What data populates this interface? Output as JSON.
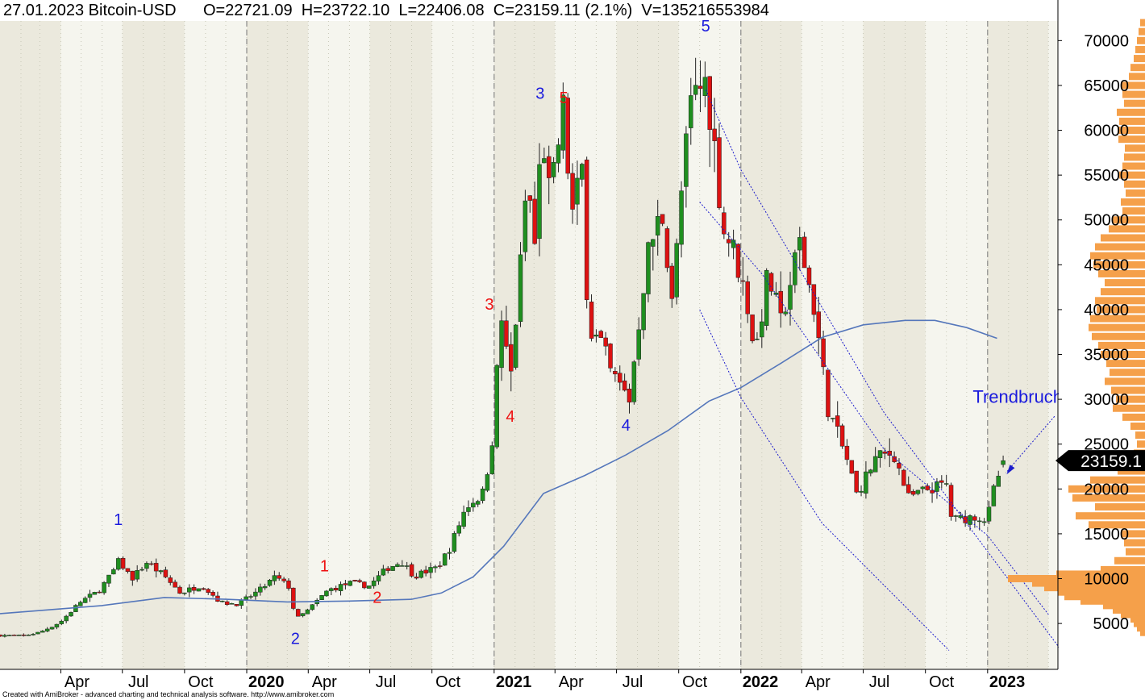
{
  "header": {
    "date": "27.01.2023",
    "symbol": "Bitcoin-USD",
    "open": "O=22721.09",
    "high": "H=23722.10",
    "low": "L=22406.08",
    "close": "C=23159.11 (2.1%)",
    "volume": "V=135216553984"
  },
  "footer": "Created with AmiBroker - advanced charting and technical analysis software. http://www.amibroker.com",
  "annotation": "Trendbruch",
  "price_tag": "23159.1",
  "colors": {
    "bull": "#1f8f1f",
    "bear": "#dd1111",
    "ma": "#5577bb",
    "channel": "#1c1ccc",
    "volume_profile": "#f5a04a",
    "blue_label": "#1a1add",
    "red_label": "#ee1111"
  },
  "chart_data": {
    "type": "candlestick",
    "title": "Bitcoin-USD",
    "ylim": [
      2000,
      73000
    ],
    "y_ticks": [
      5000,
      10000,
      15000,
      20000,
      25000,
      30000,
      35000,
      40000,
      45000,
      50000,
      55000,
      60000,
      65000,
      70000
    ],
    "x_ticks": [
      "Apr",
      "Jul",
      "Oct",
      "2020",
      "Apr",
      "Jul",
      "Oct",
      "2021",
      "Apr",
      "Jul",
      "Oct",
      "2022",
      "Apr",
      "Jul",
      "Oct",
      "2023"
    ],
    "x_range": [
      "2019-01-01",
      "2023-04-15"
    ],
    "bar_interval": "weekly",
    "last_bar": {
      "date": "2023-01-27",
      "open": 22721.09,
      "high": 23722.1,
      "low": 22406.08,
      "close": 23159.11,
      "change_pct": 2.1,
      "volume": 135216553984
    },
    "close_path": [
      [
        "2019-01-01",
        3700
      ],
      [
        "2019-02-01",
        3600
      ],
      [
        "2019-03-01",
        4000
      ],
      [
        "2019-04-01",
        5200
      ],
      [
        "2019-05-01",
        7500
      ],
      [
        "2019-05-25",
        8500
      ],
      [
        "2019-06-15",
        10500
      ],
      [
        "2019-06-26",
        12000
      ],
      [
        "2019-07-15",
        10000
      ],
      [
        "2019-08-06",
        11800
      ],
      [
        "2019-09-01",
        10300
      ],
      [
        "2019-09-25",
        8400
      ],
      [
        "2019-10-26",
        9300
      ],
      [
        "2019-11-25",
        7300
      ],
      [
        "2019-12-20",
        7200
      ],
      [
        "2020-01-20",
        8700
      ],
      [
        "2020-02-12",
        10200
      ],
      [
        "2020-03-05",
        9000
      ],
      [
        "2020-03-13",
        5400
      ],
      [
        "2020-04-01",
        6500
      ],
      [
        "2020-04-30",
        8700
      ],
      [
        "2020-06-01",
        9500
      ],
      [
        "2020-07-01",
        9200
      ],
      [
        "2020-07-27",
        11200
      ],
      [
        "2020-08-17",
        11900
      ],
      [
        "2020-09-05",
        10300
      ],
      [
        "2020-10-10",
        11300
      ],
      [
        "2020-10-28",
        13500
      ],
      [
        "2020-11-20",
        18000
      ],
      [
        "2020-12-15",
        19500
      ],
      [
        "2020-12-28",
        24500
      ],
      [
        "2021-01-05",
        33000
      ],
      [
        "2021-01-10",
        40000
      ],
      [
        "2021-01-25",
        32000
      ],
      [
        "2021-02-08",
        44000
      ],
      [
        "2021-02-20",
        56000
      ],
      [
        "2021-02-28",
        45000
      ],
      [
        "2021-03-13",
        60000
      ],
      [
        "2021-03-25",
        52000
      ],
      [
        "2021-04-14",
        63000
      ],
      [
        "2021-04-25",
        50000
      ],
      [
        "2021-05-12",
        56000
      ],
      [
        "2021-05-20",
        38000
      ],
      [
        "2021-06-10",
        36000
      ],
      [
        "2021-06-22",
        33000
      ],
      [
        "2021-07-20",
        30000
      ],
      [
        "2021-08-15",
        46000
      ],
      [
        "2021-09-06",
        51000
      ],
      [
        "2021-09-22",
        41000
      ],
      [
        "2021-10-06",
        54000
      ],
      [
        "2021-10-20",
        63500
      ],
      [
        "2021-11-10",
        65500
      ],
      [
        "2021-11-25",
        57000
      ],
      [
        "2021-12-05",
        49000
      ],
      [
        "2021-12-20",
        47000
      ],
      [
        "2022-01-10",
        41000
      ],
      [
        "2022-01-22",
        35000
      ],
      [
        "2022-02-10",
        44000
      ],
      [
        "2022-03-01",
        38500
      ],
      [
        "2022-03-29",
        47500
      ],
      [
        "2022-04-20",
        40000
      ],
      [
        "2022-05-10",
        29000
      ],
      [
        "2022-06-13",
        22000
      ],
      [
        "2022-06-18",
        19000
      ],
      [
        "2022-07-20",
        23500
      ],
      [
        "2022-08-15",
        24000
      ],
      [
        "2022-09-06",
        19000
      ],
      [
        "2022-10-05",
        20000
      ],
      [
        "2022-11-02",
        20500
      ],
      [
        "2022-11-09",
        16500
      ],
      [
        "2022-12-15",
        17000
      ],
      [
        "2022-12-31",
        16500
      ],
      [
        "2023-01-13",
        20800
      ],
      [
        "2023-01-27",
        23159
      ]
    ],
    "moving_average": [
      [
        "2019-01-01",
        6100
      ],
      [
        "2019-06-01",
        7000
      ],
      [
        "2019-09-01",
        7900
      ],
      [
        "2019-12-01",
        7700
      ],
      [
        "2020-03-01",
        7400
      ],
      [
        "2020-06-01",
        7500
      ],
      [
        "2020-09-01",
        7700
      ],
      [
        "2020-10-15",
        8400
      ],
      [
        "2020-12-01",
        10200
      ],
      [
        "2021-01-15",
        13600
      ],
      [
        "2021-03-15",
        19500
      ],
      [
        "2021-05-15",
        21500
      ],
      [
        "2021-07-15",
        23800
      ],
      [
        "2021-09-15",
        26500
      ],
      [
        "2021-11-15",
        29800
      ],
      [
        "2022-01-01",
        31300
      ],
      [
        "2022-03-01",
        34000
      ],
      [
        "2022-05-01",
        36900
      ],
      [
        "2022-07-01",
        38300
      ],
      [
        "2022-09-01",
        38800
      ],
      [
        "2022-10-15",
        38800
      ],
      [
        "2022-12-01",
        38000
      ],
      [
        "2023-01-15",
        36800
      ]
    ],
    "channel_lines": [
      [
        [
          "2021-11-10",
          64500
        ],
        [
          "2022-01-01",
          55600
        ],
        [
          "2022-08-01",
          28500
        ],
        [
          "2023-04-20",
          2000
        ]
      ],
      [
        [
          "2021-11-01",
          52000
        ],
        [
          "2022-02-01",
          44000
        ],
        [
          "2022-08-01",
          24400
        ],
        [
          "2023-01-01",
          14800
        ],
        [
          "2023-04-01",
          6000
        ]
      ],
      [
        [
          "2021-11-01",
          40000
        ],
        [
          "2022-01-01",
          30200
        ],
        [
          "2022-05-01",
          16200
        ],
        [
          "2022-11-05",
          2000
        ]
      ]
    ],
    "wave_labels": [
      {
        "text": "1",
        "date": "2019-06-25",
        "y": 16000,
        "color": "blue"
      },
      {
        "text": "2",
        "date": "2020-03-13",
        "y": 2700,
        "color": "blue"
      },
      {
        "text": "1",
        "date": "2020-04-25",
        "y": 10800,
        "color": "red"
      },
      {
        "text": "2",
        "date": "2020-07-12",
        "y": 7300,
        "color": "red"
      },
      {
        "text": "3",
        "date": "2020-12-25",
        "y": 40000,
        "color": "red"
      },
      {
        "text": "4",
        "date": "2021-01-25",
        "y": 27500,
        "color": "red"
      },
      {
        "text": "3",
        "date": "2021-03-10",
        "y": 63500,
        "color": "blue"
      },
      {
        "text": "5",
        "date": "2021-04-14",
        "y": 63000,
        "color": "red"
      },
      {
        "text": "4",
        "date": "2021-07-15",
        "y": 26500,
        "color": "blue"
      },
      {
        "text": "5",
        "date": "2021-11-10",
        "y": 71000,
        "color": "blue"
      }
    ],
    "volume_profile": [
      [
        72000,
        6
      ],
      [
        71000,
        8
      ],
      [
        70000,
        10
      ],
      [
        69000,
        12
      ],
      [
        68000,
        14
      ],
      [
        67000,
        18
      ],
      [
        66000,
        20
      ],
      [
        65000,
        30
      ],
      [
        64000,
        28
      ],
      [
        63000,
        26
      ],
      [
        62000,
        35
      ],
      [
        61000,
        32
      ],
      [
        60000,
        34
      ],
      [
        59000,
        33
      ],
      [
        58000,
        25
      ],
      [
        57000,
        26
      ],
      [
        56000,
        28
      ],
      [
        55000,
        32
      ],
      [
        54000,
        26
      ],
      [
        53000,
        24
      ],
      [
        52000,
        30
      ],
      [
        51000,
        28
      ],
      [
        50000,
        40
      ],
      [
        49000,
        45
      ],
      [
        48000,
        55
      ],
      [
        47000,
        62
      ],
      [
        46000,
        68
      ],
      [
        45000,
        64
      ],
      [
        44000,
        58
      ],
      [
        43000,
        50
      ],
      [
        42000,
        55
      ],
      [
        41000,
        62
      ],
      [
        40000,
        60
      ],
      [
        39000,
        68
      ],
      [
        38000,
        70
      ],
      [
        37000,
        66
      ],
      [
        36000,
        58
      ],
      [
        35000,
        55
      ],
      [
        34000,
        48
      ],
      [
        33000,
        44
      ],
      [
        32000,
        50
      ],
      [
        31000,
        42
      ],
      [
        30000,
        36
      ],
      [
        29000,
        40
      ],
      [
        28000,
        28
      ],
      [
        27000,
        18
      ],
      [
        26000,
        12
      ],
      [
        25000,
        10
      ],
      [
        24000,
        14
      ],
      [
        23000,
        22
      ],
      [
        22000,
        34
      ],
      [
        21000,
        68
      ],
      [
        20000,
        95
      ],
      [
        19000,
        90
      ],
      [
        18000,
        62
      ],
      [
        17000,
        86
      ],
      [
        16000,
        70
      ],
      [
        15000,
        30
      ],
      [
        14000,
        26
      ],
      [
        13000,
        24
      ],
      [
        12000,
        38
      ],
      [
        11000,
        55
      ],
      [
        10500,
        110
      ],
      [
        10000,
        170
      ],
      [
        9500,
        140
      ],
      [
        9000,
        125
      ],
      [
        8500,
        108
      ],
      [
        8000,
        100
      ],
      [
        7500,
        80
      ],
      [
        7000,
        52
      ],
      [
        6500,
        40
      ],
      [
        6000,
        30
      ],
      [
        5500,
        18
      ],
      [
        5000,
        14
      ],
      [
        4500,
        10
      ],
      [
        4000,
        6
      ]
    ]
  }
}
